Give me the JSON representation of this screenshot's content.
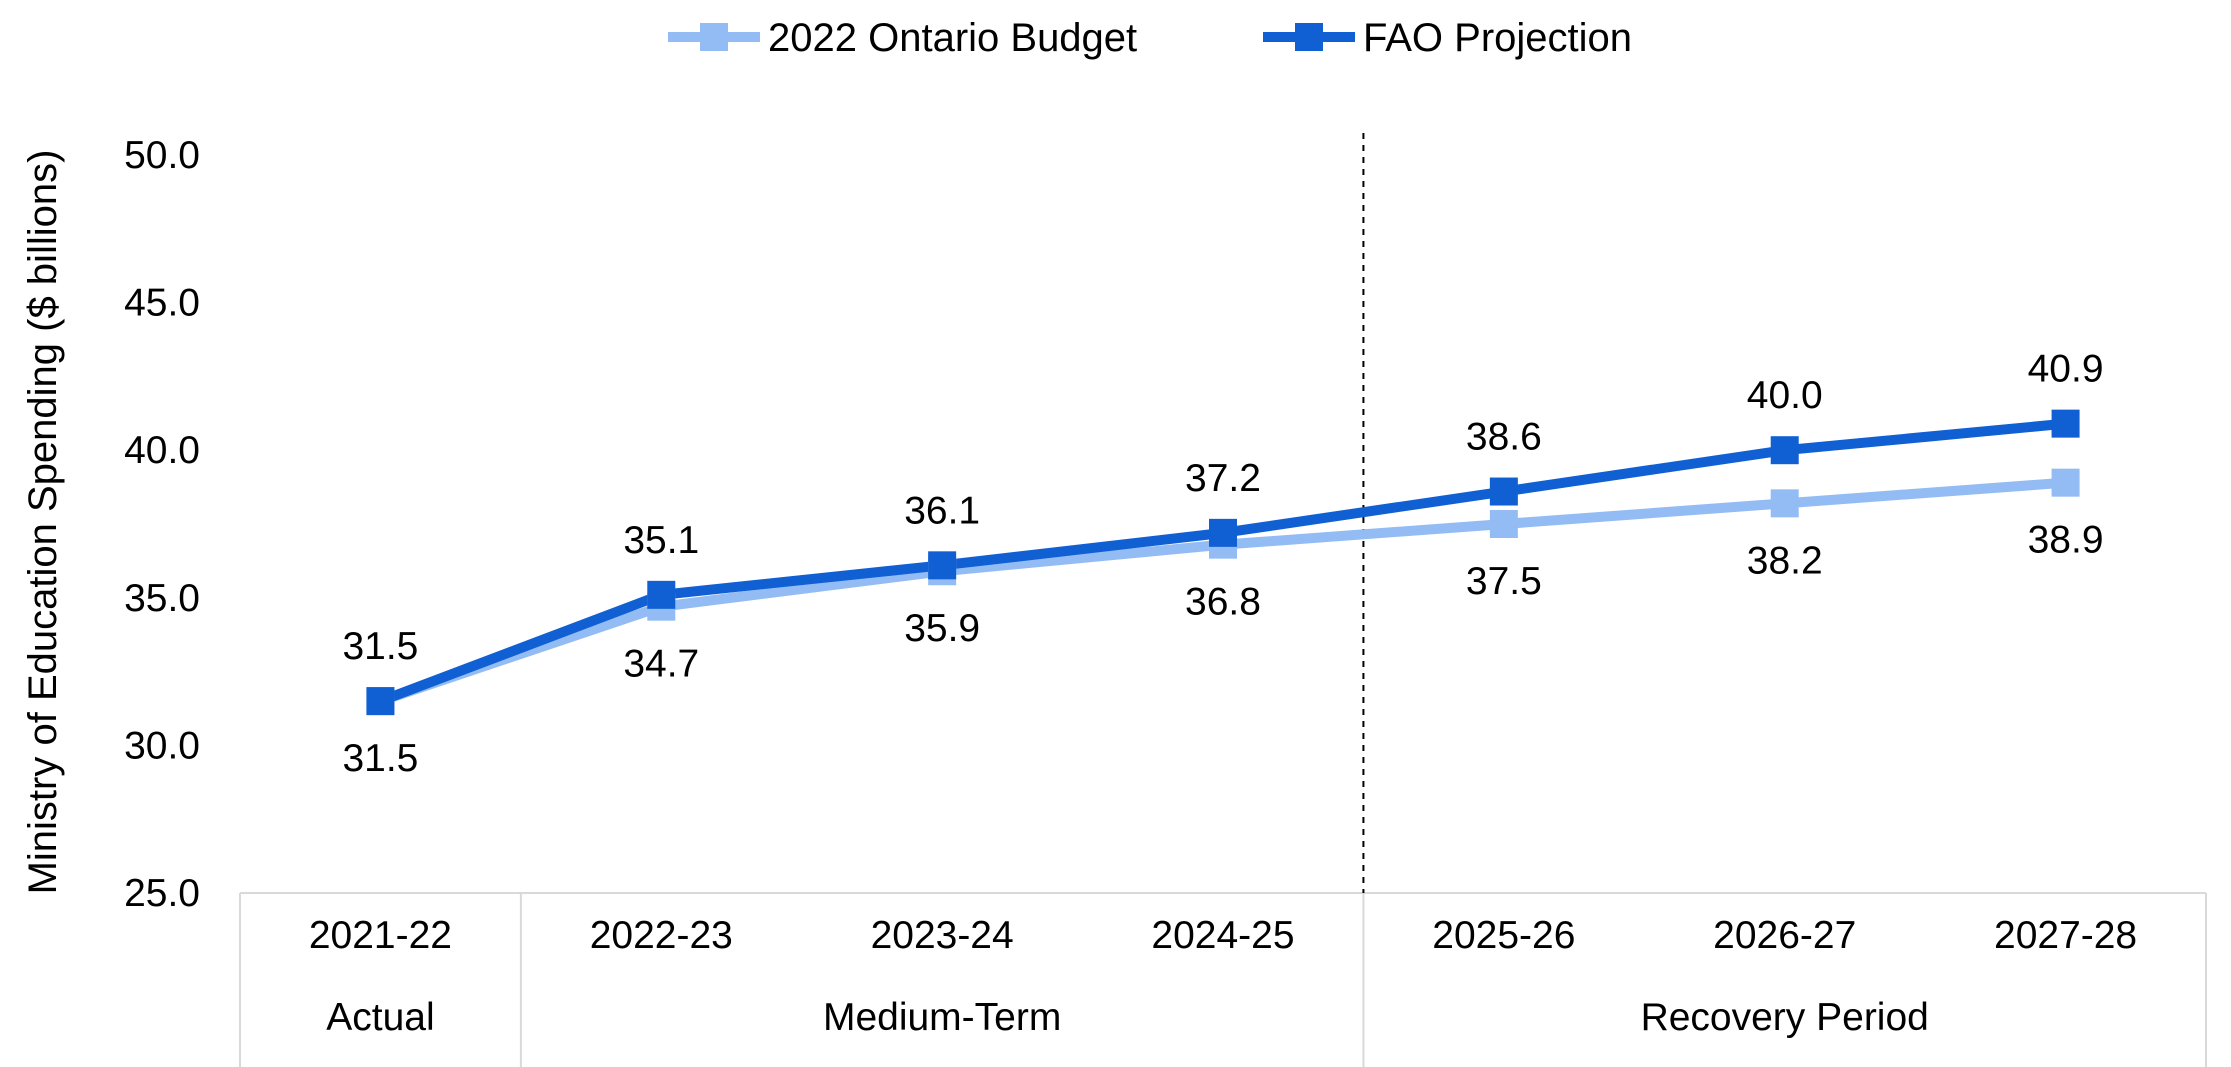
{
  "chart_data": {
    "type": "line",
    "categories": [
      "2021-22",
      "2022-23",
      "2023-24",
      "2024-25",
      "2025-26",
      "2026-27",
      "2027-28"
    ],
    "groups": [
      {
        "label": "Actual",
        "span": 1
      },
      {
        "label": "Medium-Term",
        "span": 3
      },
      {
        "label": "Recovery Period",
        "span": 3
      }
    ],
    "series": [
      {
        "name": "2022 Ontario Budget",
        "color": "#94bcf4",
        "values": [
          31.5,
          34.7,
          35.9,
          36.8,
          37.5,
          38.2,
          38.9
        ],
        "labels": [
          "31.5",
          "34.7",
          "35.9",
          "36.8",
          "37.5",
          "38.2",
          "38.9"
        ],
        "label_position": "below"
      },
      {
        "name": "FAO Projection",
        "color": "#1060d4",
        "values": [
          31.5,
          35.1,
          36.1,
          37.2,
          38.6,
          40.0,
          40.9
        ],
        "labels": [
          "31.5",
          "35.1",
          "36.1",
          "37.2",
          "38.6",
          "40.0",
          "40.9"
        ],
        "label_position": "above"
      }
    ],
    "ylabel": "Ministry of Education Spending ($ billions)",
    "ylim": [
      25.0,
      50.0
    ],
    "yticks": [
      "25.0",
      "30.0",
      "35.0",
      "40.0",
      "45.0",
      "50.0"
    ],
    "divider_after_category": "2024-25",
    "grid": false,
    "legend_position": "top-center"
  }
}
